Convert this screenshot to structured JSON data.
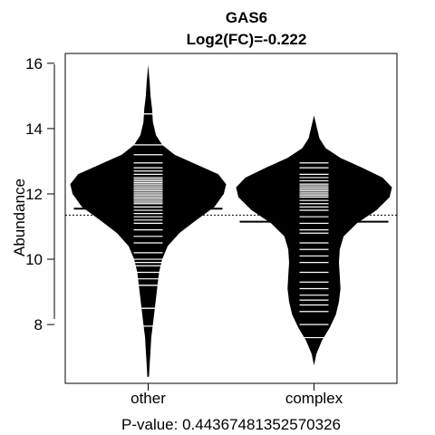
{
  "chart_data": {
    "type": "beanplot",
    "title": "GAS6",
    "subtitle": "Log2(FC)=-0.222",
    "ylabel": "Abundance",
    "xlabel": "P-value: 0.44367481352570326",
    "categories": [
      "other",
      "complex"
    ],
    "ylim": [
      6.2,
      16.3
    ],
    "yticks": [
      8,
      10,
      12,
      14,
      16
    ],
    "overall_mean": 11.35,
    "series": [
      {
        "name": "other",
        "mean": 11.55,
        "density_range": [
          6.4,
          15.95
        ],
        "density": [
          [
            6.4,
            0.01
          ],
          [
            6.8,
            0.02
          ],
          [
            7.2,
            0.03
          ],
          [
            7.6,
            0.04
          ],
          [
            8.0,
            0.06
          ],
          [
            8.4,
            0.08
          ],
          [
            8.8,
            0.1
          ],
          [
            9.2,
            0.12
          ],
          [
            9.6,
            0.14
          ],
          [
            10.0,
            0.18
          ],
          [
            10.4,
            0.25
          ],
          [
            10.8,
            0.4
          ],
          [
            11.2,
            0.62
          ],
          [
            11.6,
            0.85
          ],
          [
            12.0,
            0.97
          ],
          [
            12.3,
            1.0
          ],
          [
            12.6,
            0.9
          ],
          [
            12.9,
            0.62
          ],
          [
            13.2,
            0.34
          ],
          [
            13.5,
            0.18
          ],
          [
            13.8,
            0.1
          ],
          [
            14.2,
            0.06
          ],
          [
            14.6,
            0.05
          ],
          [
            15.0,
            0.03
          ],
          [
            15.4,
            0.02
          ],
          [
            15.95,
            0.0
          ]
        ],
        "points": [
          7.95,
          8.5,
          9.2,
          9.4,
          9.6,
          9.8,
          9.9,
          10.0,
          10.2,
          10.5,
          10.7,
          10.9,
          11.1,
          11.2,
          11.3,
          11.4,
          11.5,
          11.6,
          11.7,
          11.75,
          11.8,
          11.85,
          11.9,
          11.95,
          12.0,
          12.05,
          12.1,
          12.15,
          12.2,
          12.25,
          12.3,
          12.35,
          12.4,
          12.45,
          12.5,
          12.6,
          12.7,
          12.8,
          12.95,
          13.2,
          13.5,
          14.45
        ],
        "wide_points": [
          7.95,
          8.5,
          9.2,
          14.45
        ]
      },
      {
        "name": "complex",
        "mean": 11.15,
        "density_range": [
          6.75,
          14.4
        ],
        "density": [
          [
            6.75,
            0.0
          ],
          [
            7.1,
            0.03
          ],
          [
            7.5,
            0.1
          ],
          [
            7.9,
            0.2
          ],
          [
            8.3,
            0.28
          ],
          [
            8.7,
            0.32
          ],
          [
            9.1,
            0.34
          ],
          [
            9.5,
            0.33
          ],
          [
            9.9,
            0.32
          ],
          [
            10.3,
            0.33
          ],
          [
            10.7,
            0.38
          ],
          [
            11.1,
            0.55
          ],
          [
            11.5,
            0.8
          ],
          [
            11.9,
            0.97
          ],
          [
            12.2,
            1.0
          ],
          [
            12.5,
            0.88
          ],
          [
            12.8,
            0.62
          ],
          [
            13.1,
            0.34
          ],
          [
            13.4,
            0.15
          ],
          [
            13.7,
            0.07
          ],
          [
            14.0,
            0.04
          ],
          [
            14.4,
            0.0
          ]
        ],
        "points": [
          7.6,
          8.0,
          8.4,
          8.6,
          8.75,
          8.9,
          9.1,
          9.3,
          9.6,
          9.9,
          10.1,
          10.3,
          10.5,
          10.8,
          10.9,
          11.1,
          11.3,
          11.5,
          11.6,
          11.7,
          11.8,
          11.9,
          11.95,
          12.0,
          12.05,
          12.1,
          12.15,
          12.2,
          12.25,
          12.3,
          12.4,
          12.5,
          12.6,
          12.8,
          12.95
        ],
        "wide_points": []
      }
    ],
    "grid": false
  }
}
